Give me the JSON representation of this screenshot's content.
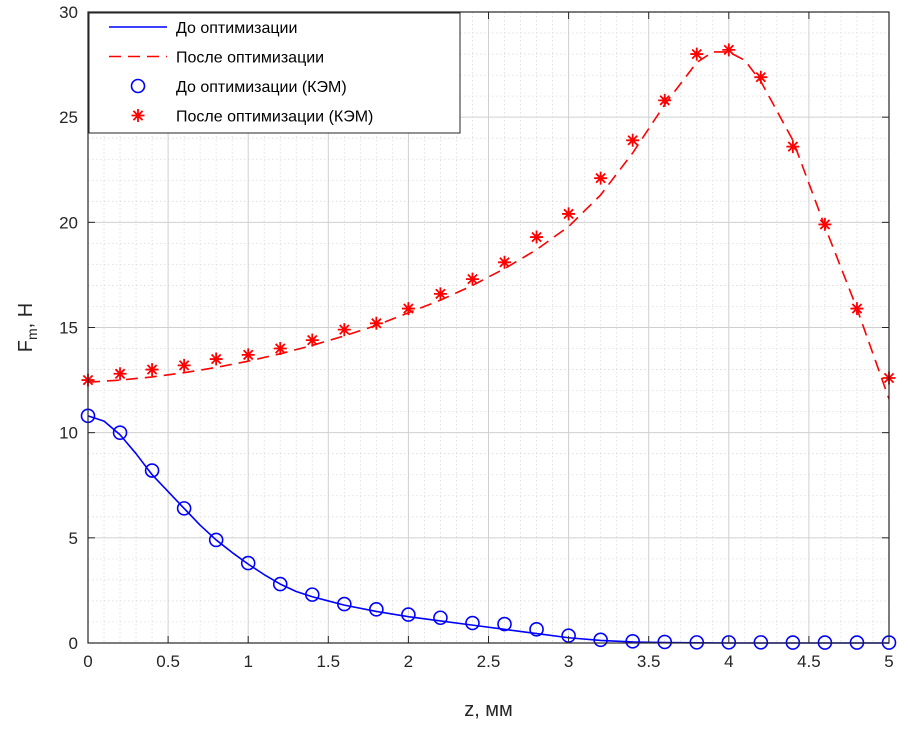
{
  "chart_data": {
    "type": "line",
    "xlabel": "z, мм",
    "ylabel_main": "F",
    "ylabel_sub": "m",
    "ylabel_rest": ", Н",
    "xlim": [
      0,
      5
    ],
    "ylim": [
      0,
      30
    ],
    "xticks": [
      0,
      0.5,
      1,
      1.5,
      2,
      2.5,
      3,
      3.5,
      4,
      4.5,
      5
    ],
    "xtick_labels": [
      "0",
      "0.5",
      "1",
      "1.5",
      "2",
      "2.5",
      "3",
      "3.5",
      "4",
      "4.5",
      "5"
    ],
    "yticks": [
      0,
      5,
      10,
      15,
      20,
      25,
      30
    ],
    "ytick_labels": [
      "0",
      "5",
      "10",
      "15",
      "20",
      "25",
      "30"
    ],
    "grid": true,
    "minor_grid": true,
    "legend_position": "top-left",
    "series": [
      {
        "name": "До оптимизации",
        "style": "solid-line",
        "color": "#0000ff",
        "x": [
          0,
          0.1,
          0.2,
          0.3,
          0.4,
          0.5,
          0.6,
          0.7,
          0.8,
          0.9,
          1.0,
          1.1,
          1.2,
          1.3,
          1.4,
          1.5,
          1.6,
          1.8,
          2.0,
          2.2,
          2.4,
          2.6,
          2.8,
          3.0,
          3.2,
          3.4,
          3.6,
          3.8,
          4.0,
          4.2,
          4.4,
          4.6,
          4.8,
          5.0
        ],
        "y": [
          10.8,
          10.55,
          9.9,
          9.0,
          8.0,
          7.2,
          6.4,
          5.6,
          4.9,
          4.3,
          3.75,
          3.25,
          2.8,
          2.45,
          2.2,
          2.0,
          1.8,
          1.5,
          1.25,
          1.05,
          0.85,
          0.65,
          0.45,
          0.25,
          0.12,
          0.05,
          0.02,
          0.01,
          0.0,
          0.0,
          0.0,
          0.0,
          0.0,
          0.0
        ]
      },
      {
        "name": "После оптимизации",
        "style": "dashed-line",
        "color": "#ff0000",
        "x": [
          0,
          0.2,
          0.4,
          0.6,
          0.8,
          1.0,
          1.2,
          1.4,
          1.6,
          1.8,
          2.0,
          2.2,
          2.4,
          2.6,
          2.8,
          3.0,
          3.2,
          3.4,
          3.6,
          3.8,
          3.9,
          4.0,
          4.1,
          4.2,
          4.4,
          4.6,
          4.8,
          5.0
        ],
        "y": [
          12.4,
          12.5,
          12.65,
          12.85,
          13.1,
          13.4,
          13.75,
          14.15,
          14.6,
          15.1,
          15.7,
          16.3,
          17.0,
          17.8,
          18.7,
          19.8,
          21.3,
          23.3,
          25.6,
          27.6,
          28.1,
          28.1,
          27.7,
          26.7,
          23.9,
          19.8,
          15.9,
          11.6
        ]
      },
      {
        "name": "До оптимизации (КЭМ)",
        "style": "circle-marker",
        "color": "#0000ff",
        "x": [
          0,
          0.2,
          0.4,
          0.6,
          0.8,
          1.0,
          1.2,
          1.4,
          1.6,
          1.8,
          2.0,
          2.2,
          2.4,
          2.6,
          2.8,
          3.0,
          3.2,
          3.4,
          3.6,
          3.8,
          4.0,
          4.2,
          4.4,
          4.6,
          4.8,
          5.0
        ],
        "y": [
          10.8,
          10.0,
          8.2,
          6.4,
          4.9,
          3.8,
          2.8,
          2.3,
          1.85,
          1.6,
          1.35,
          1.2,
          0.95,
          0.9,
          0.65,
          0.35,
          0.15,
          0.08,
          0.05,
          0.03,
          0.03,
          0.03,
          0.02,
          0.02,
          0.02,
          0.02
        ]
      },
      {
        "name": "После оптимизации (КЭМ)",
        "style": "star-marker",
        "color": "#ff0000",
        "x": [
          0,
          0.2,
          0.4,
          0.6,
          0.8,
          1.0,
          1.2,
          1.4,
          1.6,
          1.8,
          2.0,
          2.2,
          2.4,
          2.6,
          2.8,
          3.0,
          3.2,
          3.4,
          3.6,
          3.8,
          4.0,
          4.2,
          4.4,
          4.6,
          4.8,
          5.0
        ],
        "y": [
          12.5,
          12.8,
          13.0,
          13.2,
          13.5,
          13.7,
          14.0,
          14.4,
          14.9,
          15.2,
          15.9,
          16.6,
          17.3,
          18.1,
          19.3,
          20.4,
          22.1,
          23.9,
          25.8,
          28.0,
          28.2,
          26.9,
          23.6,
          19.9,
          15.9,
          12.6
        ]
      }
    ]
  }
}
